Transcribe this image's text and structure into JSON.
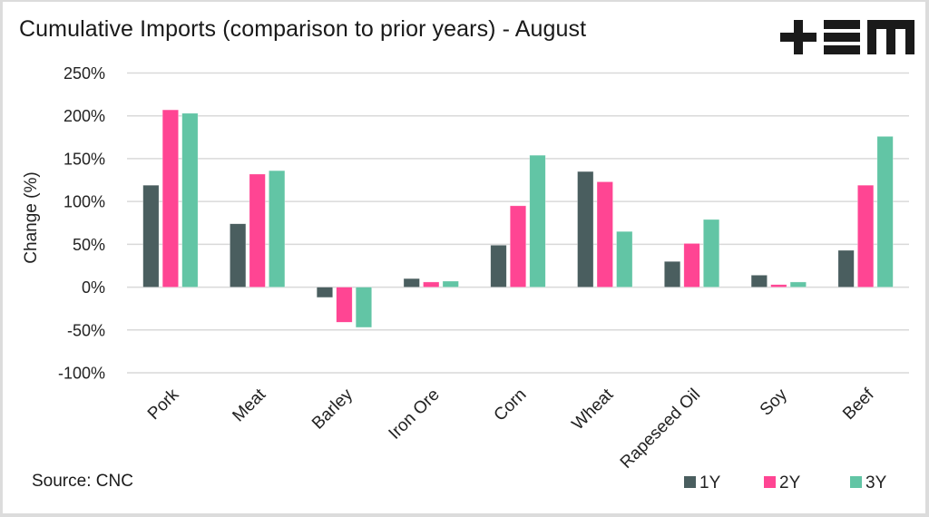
{
  "header": {
    "title": "Cumulative Imports (comparison to prior years) - August",
    "logo_icon": "tem-logo-icon"
  },
  "footer": {
    "source": "Source: CNC"
  },
  "chart_data": {
    "type": "bar",
    "title": "Cumulative Imports (comparison to prior years) - August",
    "xlabel": "",
    "ylabel": "Change (%)",
    "ylim": [
      -100,
      250
    ],
    "yticks": [
      250,
      200,
      150,
      100,
      50,
      0,
      -50,
      -100
    ],
    "ytick_labels": [
      "250%",
      "200%",
      "150%",
      "100%",
      "50%",
      "0%",
      "-50%",
      "-100%"
    ],
    "grid": true,
    "legend_position": "bottom-right",
    "categories": [
      "Pork",
      "Meat",
      "Barley",
      "Iron Ore",
      "Corn",
      "Wheat",
      "Rapeseed Oil",
      "Soy",
      "Beef"
    ],
    "series": [
      {
        "name": "1Y",
        "color": "#4a5e5f",
        "values": [
          119,
          74,
          -12,
          10,
          49,
          135,
          30,
          14,
          43
        ]
      },
      {
        "name": "2Y",
        "color": "#ff4593",
        "values": [
          207,
          132,
          -41,
          6,
          95,
          123,
          51,
          3,
          119
        ]
      },
      {
        "name": "3Y",
        "color": "#62c5a5",
        "values": [
          203,
          136,
          -47,
          7,
          154,
          65,
          79,
          6,
          176
        ]
      }
    ],
    "gridline_color": "#d9d9d9"
  }
}
